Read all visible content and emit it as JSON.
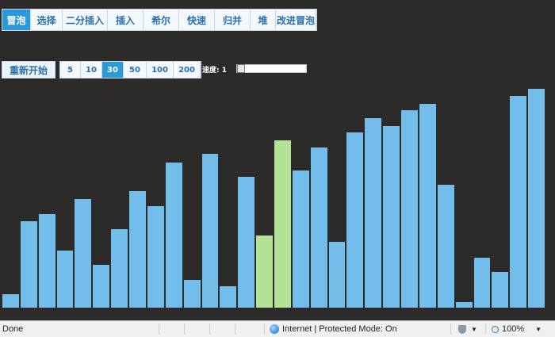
{
  "tabs": [
    {
      "label": "冒泡",
      "active": true
    },
    {
      "label": "选择",
      "active": false
    },
    {
      "label": "二分插入",
      "active": false
    },
    {
      "label": "插入",
      "active": false
    },
    {
      "label": "希尔",
      "active": false
    },
    {
      "label": "快速",
      "active": false
    },
    {
      "label": "归并",
      "active": false
    },
    {
      "label": "堆",
      "active": false
    },
    {
      "label": "改进冒泡",
      "active": false
    }
  ],
  "controls": {
    "restart_label": "重新开始",
    "sizes": [
      "5",
      "10",
      "30",
      "50",
      "100",
      "200"
    ],
    "active_size": "30",
    "speed_label": "速度: 1",
    "speed_value": 1
  },
  "bars": {
    "values": [
      18,
      110,
      119,
      73,
      138,
      55,
      100,
      148,
      129,
      184,
      36,
      195,
      28,
      166,
      92,
      212,
      174,
      203,
      84,
      222,
      240,
      230,
      250,
      258,
      156,
      8,
      64,
      46,
      268,
      277
    ],
    "highlighted": [
      14,
      15
    ],
    "color": "#73bdea",
    "highlight_color": "#b3e196"
  },
  "statusbar": {
    "left_text": "Done",
    "zone_text": "Internet | Protected Mode: On",
    "zoom_text": "100%"
  }
}
